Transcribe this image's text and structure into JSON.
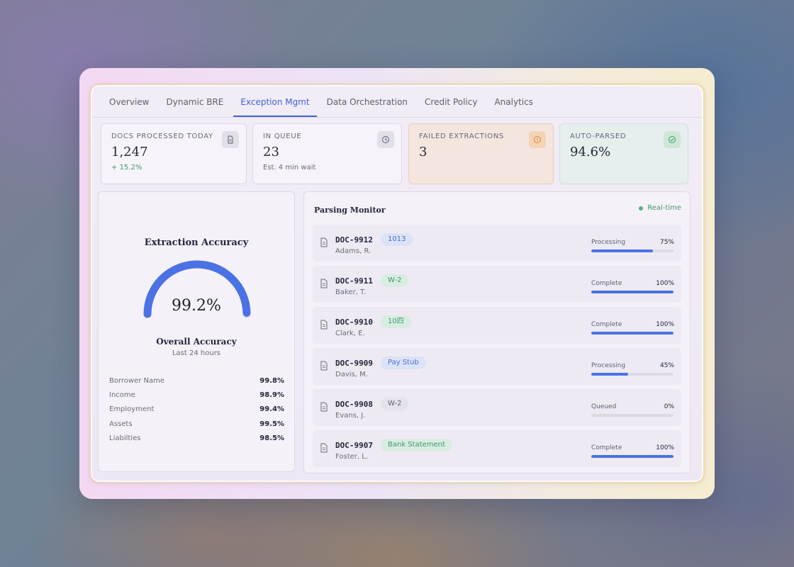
{
  "tabs": [
    {
      "label": "Overview",
      "active": false
    },
    {
      "label": "Dynamic BRE",
      "active": false
    },
    {
      "label": "Exception Mgmt",
      "active": true
    },
    {
      "label": "Data Orchestration",
      "active": false
    },
    {
      "label": "Credit Policy",
      "active": false
    },
    {
      "label": "Analytics",
      "active": false
    }
  ],
  "stats": [
    {
      "label": "DOCS PROCESSED TODAY",
      "value": "1,247",
      "sub": "+ 15.2%",
      "icon": "document-icon"
    },
    {
      "label": "IN QUEUE",
      "value": "23",
      "sub": "Est. 4 min wait",
      "icon": "clock-icon"
    },
    {
      "label": "FAILED EXTRACTIONS",
      "value": "3",
      "icon": "alert-icon"
    },
    {
      "label": "AUTO-PARSED",
      "value": "94.6%",
      "icon": "check-circle-icon"
    }
  ],
  "accuracy": {
    "title": "Extraction Accuracy",
    "value": "99.2%",
    "gauge_fraction": 0.992,
    "overall_label": "Overall Accuracy",
    "period": "Last 24 hours",
    "metrics": [
      {
        "name": "Borrower Name",
        "value": "99.8%"
      },
      {
        "name": "Income",
        "value": "98.9%"
      },
      {
        "name": "Employment",
        "value": "99.4%"
      },
      {
        "name": "Assets",
        "value": "99.5%"
      },
      {
        "name": "Liabilties",
        "value": "98.5%"
      }
    ]
  },
  "monitor": {
    "title": "Parsing Monitor",
    "live_label": "Real-time",
    "rows": [
      {
        "id": "DOC-9912",
        "name": "Adams, R.",
        "tag": "1013",
        "tag_color": "blue",
        "status": "Processing",
        "pct": "75%",
        "progress": 0.75
      },
      {
        "id": "DOC-9911",
        "name": "Baker, T.",
        "tag": "W-2",
        "tag_color": "green",
        "status": "Complete",
        "pct": "100%",
        "progress": 1.0
      },
      {
        "id": "DOC-9910",
        "name": "Clark, E.",
        "tag": "10四",
        "tag_color": "green",
        "status": "Complete",
        "pct": "100%",
        "progress": 1.0
      },
      {
        "id": "DOC-9909",
        "name": "Davis, M.",
        "tag": "Pay Stub",
        "tag_color": "blue",
        "status": "Processing",
        "pct": "45%",
        "progress": 0.45
      },
      {
        "id": "DOC-9908",
        "name": "Evans, J.",
        "tag": "W-2",
        "tag_color": "gray",
        "status": "Queued",
        "pct": "0%",
        "progress": 0.0
      },
      {
        "id": "DOC-9907",
        "name": "Foster, L.",
        "tag": "Bank Statement",
        "tag_color": "green",
        "status": "Complete",
        "pct": "100%",
        "progress": 1.0
      }
    ]
  },
  "colors": {
    "accent": "#3f63d8",
    "bar": "#4a72e4",
    "success": "#3f9a6a",
    "warning": "#e0a050"
  }
}
